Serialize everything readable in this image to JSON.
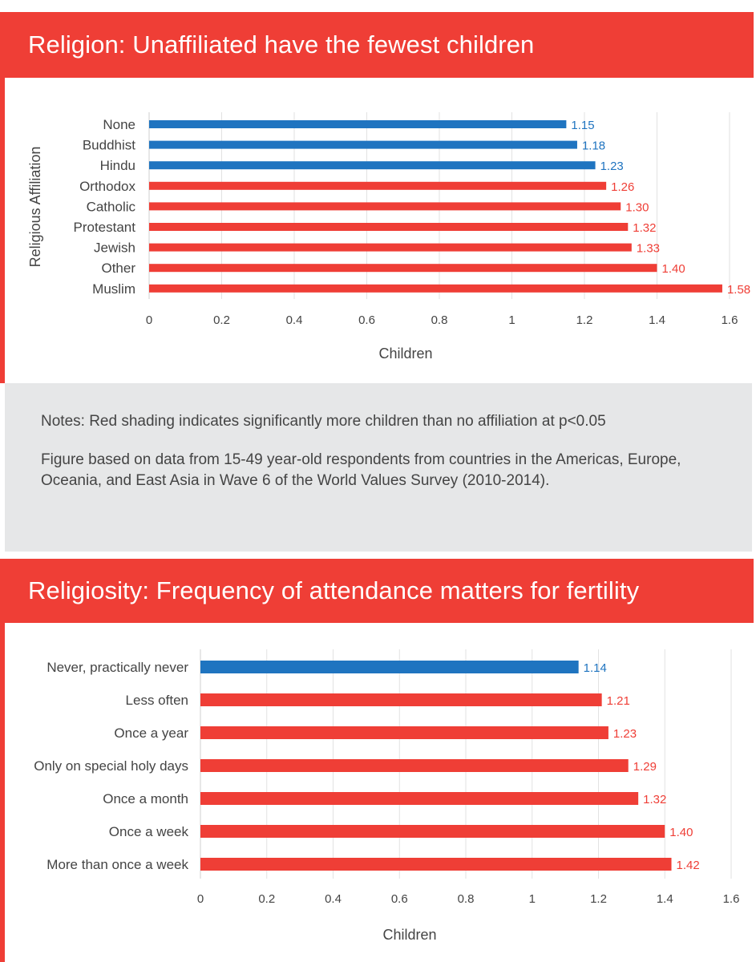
{
  "colors": {
    "accent": "#ef3e36",
    "blue": "#1f74c0",
    "red": "#ef3e36",
    "notes_bg": "#e6e7e8"
  },
  "section1": {
    "title": "Religion: Unaffiliated have the fewest children"
  },
  "notes": {
    "line1": "Notes: Red shading indicates significantly more children than no affiliation at p<0.05",
    "line2": "Figure based on data from 15-49 year-old respondents from countries in the Americas, Europe, Oceania, and East Asia in Wave 6 of the World Values Survey (2010-2014)."
  },
  "section2": {
    "title": "Religiosity: Frequency of attendance matters for fertility"
  },
  "chart_data": [
    {
      "type": "bar",
      "orientation": "horizontal",
      "categories": [
        "None",
        "Buddhist",
        "Hindu",
        "Orthodox",
        "Catholic",
        "Protestant",
        "Jewish",
        "Other",
        "Muslim"
      ],
      "values": [
        1.15,
        1.18,
        1.23,
        1.26,
        1.3,
        1.32,
        1.33,
        1.4,
        1.58
      ],
      "labels": [
        "1.15",
        "1.18",
        "1.23",
        "1.26",
        "1.30",
        "1.32",
        "1.33",
        "1.40",
        "1.58"
      ],
      "significant": [
        false,
        false,
        false,
        true,
        true,
        true,
        true,
        true,
        true
      ],
      "xlabel": "Children",
      "ylabel": "Religious Affiliation",
      "xlim": [
        0,
        1.6
      ],
      "xticks": [
        "0",
        "0.2",
        "0.4",
        "0.6",
        "0.8",
        "1",
        "1.2",
        "1.4",
        "1.6"
      ],
      "grid": true
    },
    {
      "type": "bar",
      "orientation": "horizontal",
      "categories": [
        "Never, practically never",
        "Less often",
        "Once a year",
        "Only on special holy days",
        "Once a month",
        "Once a week",
        "More than once a week"
      ],
      "values": [
        1.14,
        1.21,
        1.23,
        1.29,
        1.32,
        1.4,
        1.42
      ],
      "labels": [
        "1.14",
        "1.21",
        "1.23",
        "1.29",
        "1.32",
        "1.40",
        "1.42"
      ],
      "significant": [
        false,
        true,
        true,
        true,
        true,
        true,
        true
      ],
      "xlabel": "Children",
      "ylabel": "",
      "xlim": [
        0,
        1.6
      ],
      "xticks": [
        "0",
        "0.2",
        "0.4",
        "0.6",
        "0.8",
        "1",
        "1.2",
        "1.4",
        "1.6"
      ],
      "grid": true
    }
  ]
}
